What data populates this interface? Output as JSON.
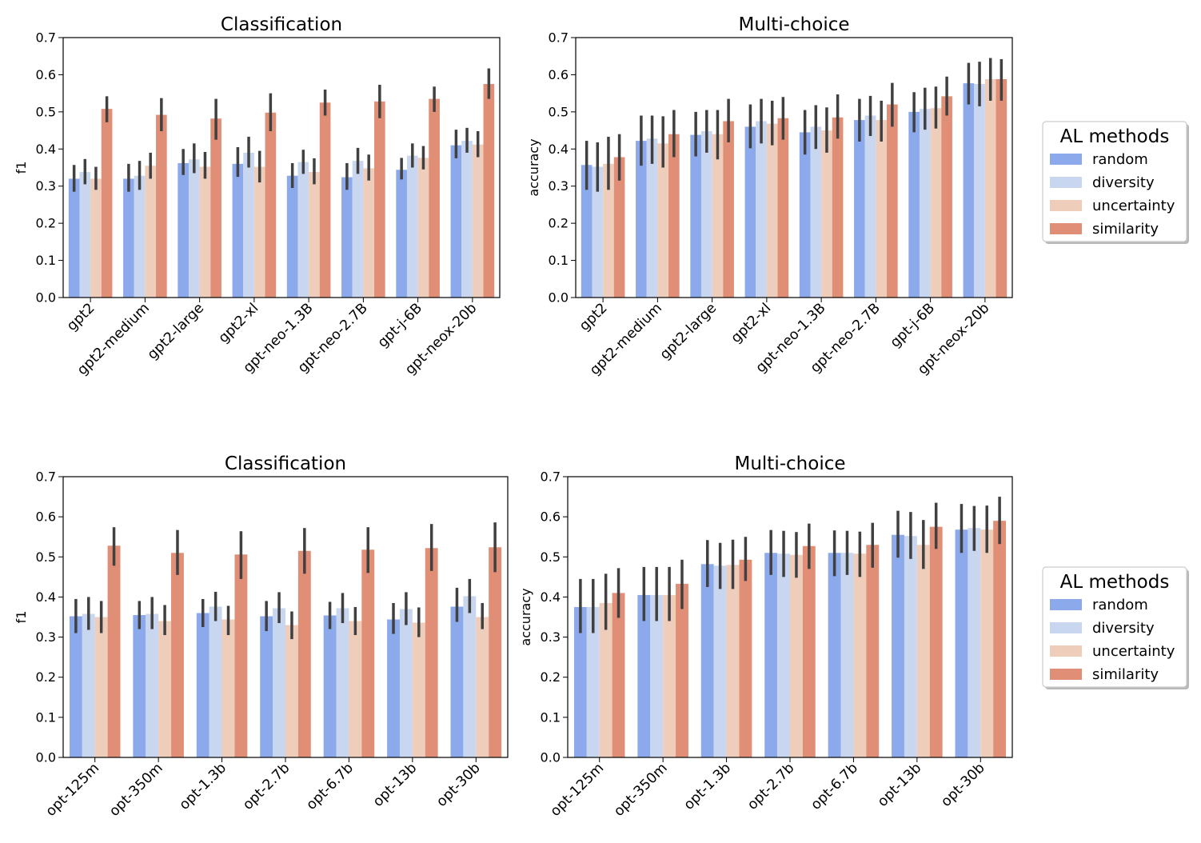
{
  "legend_title": "AL methods",
  "methods": [
    "random",
    "diversity",
    "uncertainty",
    "similarity"
  ],
  "colors": {
    "random": "#8caaeb",
    "diversity": "#c8d6f0",
    "uncertainty": "#efcdbb",
    "similarity": "#e08f76",
    "errorbar": "#404040"
  },
  "chart_data": [
    {
      "type": "bar",
      "title": "Classification",
      "ylabel": "f1",
      "xlabel": "",
      "ylim": [
        0,
        0.7
      ],
      "yticks": [
        "0.0",
        "0.1",
        "0.2",
        "0.3",
        "0.4",
        "0.5",
        "0.6",
        "0.7"
      ],
      "categories": [
        "gpt2",
        "gpt2-medium",
        "gpt2-large",
        "gpt2-xl",
        "gpt-neo-1.3B",
        "gpt-neo-2.7B",
        "gpt-j-6B",
        "gpt-neox-20b"
      ],
      "series": [
        {
          "name": "random",
          "values": [
            0.32,
            0.32,
            0.362,
            0.36,
            0.328,
            0.324,
            0.344,
            0.41
          ],
          "err_low": [
            0.285,
            0.285,
            0.33,
            0.325,
            0.295,
            0.29,
            0.318,
            0.375
          ],
          "err_high": [
            0.357,
            0.36,
            0.4,
            0.405,
            0.362,
            0.362,
            0.376,
            0.452
          ]
        },
        {
          "name": "diversity",
          "values": [
            0.338,
            0.328,
            0.372,
            0.39,
            0.365,
            0.368,
            0.382,
            0.422
          ],
          "err_low": [
            0.305,
            0.29,
            0.335,
            0.35,
            0.333,
            0.333,
            0.35,
            0.39
          ],
          "err_high": [
            0.373,
            0.368,
            0.415,
            0.433,
            0.398,
            0.403,
            0.415,
            0.457
          ]
        },
        {
          "name": "uncertainty",
          "values": [
            0.32,
            0.355,
            0.352,
            0.352,
            0.338,
            0.348,
            0.376,
            0.412
          ],
          "err_low": [
            0.29,
            0.32,
            0.32,
            0.31,
            0.305,
            0.315,
            0.345,
            0.378
          ],
          "err_high": [
            0.352,
            0.39,
            0.392,
            0.395,
            0.375,
            0.385,
            0.408,
            0.448
          ]
        },
        {
          "name": "similarity",
          "values": [
            0.508,
            0.492,
            0.482,
            0.498,
            0.525,
            0.528,
            0.535,
            0.575
          ],
          "err_low": [
            0.472,
            0.448,
            0.425,
            0.448,
            0.49,
            0.483,
            0.5,
            0.535
          ],
          "err_high": [
            0.542,
            0.537,
            0.535,
            0.55,
            0.56,
            0.573,
            0.568,
            0.617
          ]
        }
      ]
    },
    {
      "type": "bar",
      "title": "Multi-choice",
      "ylabel": "accuracy",
      "xlabel": "",
      "ylim": [
        0,
        0.7
      ],
      "yticks": [
        "0.0",
        "0.1",
        "0.2",
        "0.3",
        "0.4",
        "0.5",
        "0.6",
        "0.7"
      ],
      "categories": [
        "gpt2",
        "gpt2-medium",
        "gpt2-large",
        "gpt2-xl",
        "gpt-neo-1.3B",
        "gpt-neo-2.7B",
        "gpt-j-6B",
        "gpt-neox-20b"
      ],
      "series": [
        {
          "name": "random",
          "values": [
            0.357,
            0.422,
            0.438,
            0.46,
            0.445,
            0.478,
            0.5,
            0.577
          ],
          "err_low": [
            0.29,
            0.355,
            0.38,
            0.402,
            0.385,
            0.42,
            0.445,
            0.52
          ],
          "err_high": [
            0.422,
            0.49,
            0.5,
            0.52,
            0.505,
            0.535,
            0.553,
            0.632
          ]
        },
        {
          "name": "diversity",
          "values": [
            0.352,
            0.428,
            0.448,
            0.475,
            0.46,
            0.49,
            0.508,
            0.575
          ],
          "err_low": [
            0.285,
            0.36,
            0.39,
            0.415,
            0.4,
            0.435,
            0.452,
            0.515
          ],
          "err_high": [
            0.418,
            0.49,
            0.505,
            0.535,
            0.518,
            0.543,
            0.565,
            0.635
          ]
        },
        {
          "name": "uncertainty",
          "values": [
            0.36,
            0.415,
            0.44,
            0.468,
            0.45,
            0.478,
            0.51,
            0.588
          ],
          "err_low": [
            0.29,
            0.35,
            0.372,
            0.41,
            0.39,
            0.42,
            0.455,
            0.53
          ],
          "err_high": [
            0.433,
            0.488,
            0.505,
            0.53,
            0.512,
            0.53,
            0.568,
            0.645
          ]
        },
        {
          "name": "similarity",
          "values": [
            0.378,
            0.44,
            0.475,
            0.483,
            0.485,
            0.52,
            0.542,
            0.588
          ],
          "err_low": [
            0.315,
            0.378,
            0.418,
            0.425,
            0.428,
            0.46,
            0.49,
            0.53
          ],
          "err_high": [
            0.44,
            0.505,
            0.535,
            0.54,
            0.547,
            0.578,
            0.595,
            0.642
          ]
        }
      ]
    },
    {
      "type": "bar",
      "title": "Classification",
      "ylabel": "f1",
      "xlabel": "",
      "ylim": [
        0,
        0.7
      ],
      "yticks": [
        "0.0",
        "0.1",
        "0.2",
        "0.3",
        "0.4",
        "0.5",
        "0.6",
        "0.7"
      ],
      "categories": [
        "opt-125m",
        "opt-350m",
        "opt-1.3b",
        "opt-2.7b",
        "opt-6.7b",
        "opt-13b",
        "opt-30b"
      ],
      "series": [
        {
          "name": "random",
          "values": [
            0.352,
            0.355,
            0.36,
            0.352,
            0.354,
            0.344,
            0.376
          ],
          "err_low": [
            0.31,
            0.32,
            0.325,
            0.315,
            0.32,
            0.308,
            0.338
          ],
          "err_high": [
            0.395,
            0.39,
            0.395,
            0.39,
            0.388,
            0.385,
            0.423
          ]
        },
        {
          "name": "diversity",
          "values": [
            0.358,
            0.358,
            0.376,
            0.372,
            0.372,
            0.37,
            0.402
          ],
          "err_low": [
            0.318,
            0.32,
            0.34,
            0.335,
            0.335,
            0.33,
            0.36
          ],
          "err_high": [
            0.4,
            0.4,
            0.413,
            0.412,
            0.41,
            0.412,
            0.445
          ]
        },
        {
          "name": "uncertainty",
          "values": [
            0.35,
            0.34,
            0.344,
            0.33,
            0.34,
            0.336,
            0.35
          ],
          "err_low": [
            0.31,
            0.305,
            0.305,
            0.295,
            0.305,
            0.3,
            0.32
          ],
          "err_high": [
            0.39,
            0.38,
            0.378,
            0.364,
            0.375,
            0.374,
            0.385
          ]
        },
        {
          "name": "similarity",
          "values": [
            0.528,
            0.51,
            0.506,
            0.515,
            0.518,
            0.522,
            0.524
          ],
          "err_low": [
            0.478,
            0.455,
            0.445,
            0.458,
            0.46,
            0.465,
            0.462
          ],
          "err_high": [
            0.574,
            0.567,
            0.564,
            0.572,
            0.574,
            0.582,
            0.586
          ]
        }
      ]
    },
    {
      "type": "bar",
      "title": "Multi-choice",
      "ylabel": "accuracy",
      "xlabel": "",
      "ylim": [
        0,
        0.7
      ],
      "yticks": [
        "0.0",
        "0.1",
        "0.2",
        "0.3",
        "0.4",
        "0.5",
        "0.6",
        "0.7"
      ],
      "categories": [
        "opt-125m",
        "opt-350m",
        "opt-1.3b",
        "opt-2.7b",
        "opt-6.7b",
        "opt-13b",
        "opt-30b"
      ],
      "series": [
        {
          "name": "random",
          "values": [
            0.375,
            0.405,
            0.482,
            0.51,
            0.51,
            0.555,
            0.568
          ],
          "err_low": [
            0.31,
            0.34,
            0.425,
            0.455,
            0.452,
            0.498,
            0.51
          ],
          "err_high": [
            0.445,
            0.475,
            0.542,
            0.567,
            0.566,
            0.615,
            0.632
          ]
        },
        {
          "name": "diversity",
          "values": [
            0.375,
            0.405,
            0.478,
            0.508,
            0.51,
            0.552,
            0.572
          ],
          "err_low": [
            0.31,
            0.34,
            0.42,
            0.45,
            0.455,
            0.495,
            0.515
          ],
          "err_high": [
            0.445,
            0.475,
            0.535,
            0.565,
            0.565,
            0.612,
            0.627
          ]
        },
        {
          "name": "uncertainty",
          "values": [
            0.385,
            0.405,
            0.48,
            0.505,
            0.508,
            0.53,
            0.568
          ],
          "err_low": [
            0.318,
            0.34,
            0.42,
            0.448,
            0.45,
            0.47,
            0.51
          ],
          "err_high": [
            0.458,
            0.475,
            0.543,
            0.562,
            0.563,
            0.592,
            0.628
          ]
        },
        {
          "name": "similarity",
          "values": [
            0.41,
            0.433,
            0.493,
            0.527,
            0.53,
            0.575,
            0.59
          ],
          "err_low": [
            0.348,
            0.37,
            0.44,
            0.47,
            0.473,
            0.52,
            0.532
          ],
          "err_high": [
            0.472,
            0.493,
            0.55,
            0.583,
            0.585,
            0.635,
            0.65
          ]
        }
      ]
    }
  ]
}
